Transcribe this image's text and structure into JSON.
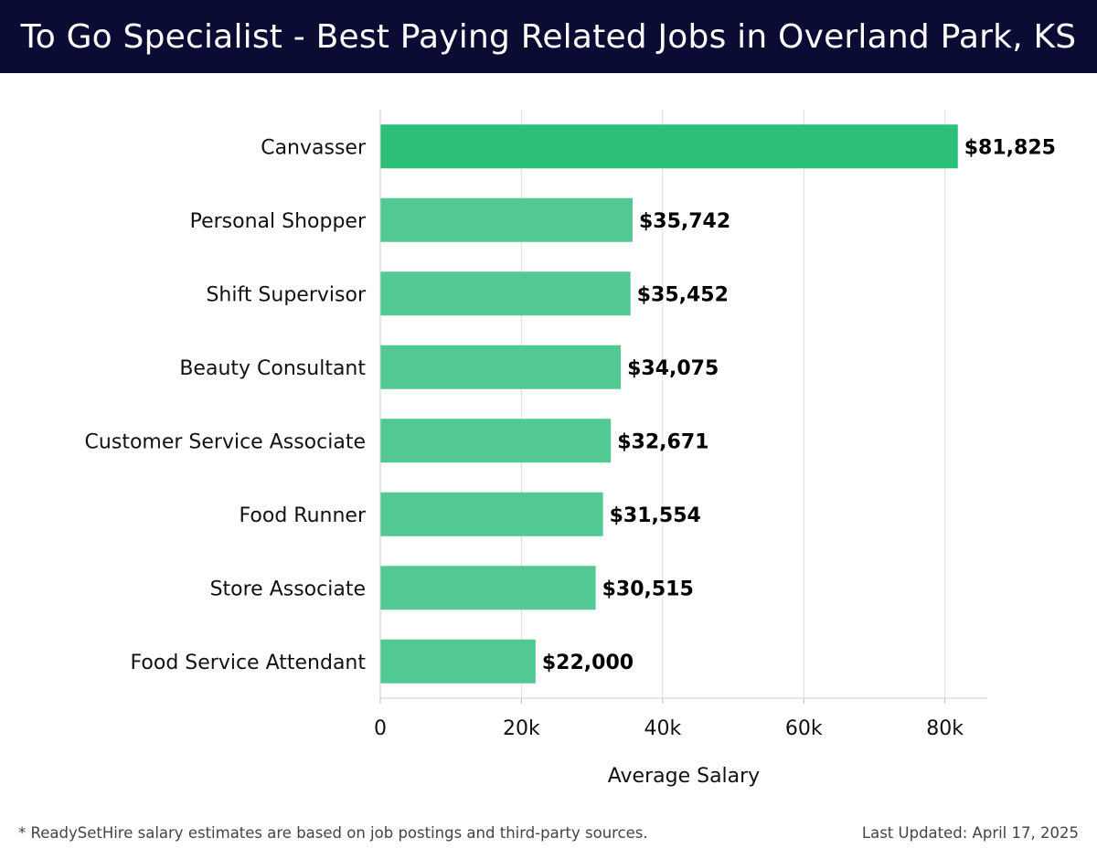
{
  "header": {
    "title": "To Go Specialist - Best Paying Related Jobs in Overland Park, KS"
  },
  "chart_data": {
    "type": "bar",
    "orientation": "horizontal",
    "categories": [
      "Canvasser",
      "Personal Shopper",
      "Shift Supervisor",
      "Beauty Consultant",
      "Customer Service Associate",
      "Food Runner",
      "Store Associate",
      "Food Service Attendant"
    ],
    "values": [
      81825,
      35742,
      35452,
      34075,
      32671,
      31554,
      30515,
      22000
    ],
    "value_labels": [
      "$81,825",
      "$35,742",
      "$35,452",
      "$34,075",
      "$32,671",
      "$31,554",
      "$30,515",
      "$22,000"
    ],
    "xlabel": "Average Salary",
    "ylabel": "",
    "xlim": [
      0,
      86000
    ],
    "x_ticks": [
      0,
      20000,
      40000,
      60000,
      80000
    ],
    "x_tick_labels": [
      "0",
      "20k",
      "40k",
      "60k",
      "80k"
    ],
    "grid": true,
    "colors": {
      "highlight": "#2bbf78",
      "bar": "#52c992",
      "grid": "#dddddd"
    }
  },
  "footer": {
    "note": "* ReadySetHire salary estimates are based on job postings and third-party sources.",
    "updated": "Last Updated: April 17, 2025"
  }
}
